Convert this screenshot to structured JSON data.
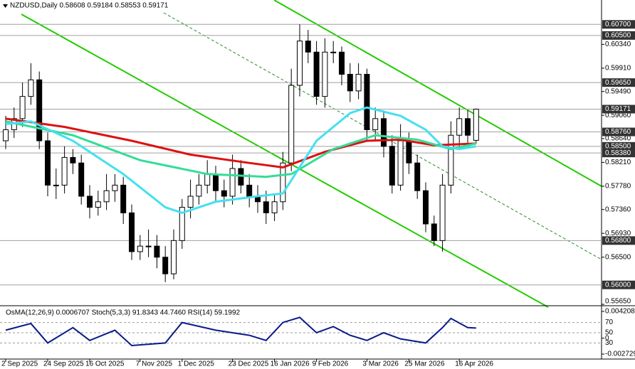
{
  "chart_data": {
    "type": "candlestick",
    "title": "NZDUSD,Daily  0.58608 0.59184 0.58553 0.59171",
    "categories": [
      "2 Sep 2025",
      null,
      null,
      null,
      null,
      "24 Sep 2025",
      null,
      null,
      null,
      null,
      "16 Oct 2025",
      null,
      null,
      null,
      null,
      null,
      "7 Nov 2025",
      null,
      null,
      null,
      null,
      "1 Dec 2025",
      null,
      null,
      null,
      null,
      null,
      "23 Dec 2025",
      null,
      null,
      null,
      null,
      "16 Jan 2026",
      null,
      null,
      null,
      null,
      "9 Feb 2026",
      null,
      null,
      null,
      null,
      null,
      "3 Mar 2026",
      null,
      null,
      null,
      null,
      "25 Mar 2026",
      null,
      null,
      null,
      null,
      null,
      "16 Apr 2026",
      null,
      null
    ],
    "open": [
      0.586,
      0.588,
      0.59,
      0.594,
      0.597,
      0.586,
      0.578,
      0.578,
      0.583,
      0.582,
      0.576,
      0.574,
      0.575,
      0.577,
      0.578,
      0.573,
      0.566,
      0.567,
      0.567,
      0.565,
      0.562,
      0.568,
      0.574,
      0.576,
      0.578,
      0.58,
      0.577,
      0.576,
      0.581,
      0.578,
      0.576,
      0.575,
      0.573,
      0.575,
      0.582,
      0.596,
      0.604,
      0.602,
      0.594,
      0.602,
      0.602,
      0.598,
      0.595,
      0.598,
      0.588,
      0.59,
      0.585,
      0.578,
      0.586,
      0.582,
      0.577,
      0.571,
      0.568,
      0.578,
      0.587,
      0.59,
      0.58608
    ],
    "high": [
      0.5905,
      0.592,
      0.5965,
      0.6,
      0.5985,
      0.5875,
      0.581,
      0.585,
      0.5845,
      0.5835,
      0.578,
      0.577,
      0.58,
      0.58,
      0.5795,
      0.5745,
      0.569,
      0.57,
      0.569,
      0.567,
      0.57,
      0.5755,
      0.579,
      0.58,
      0.5825,
      0.5815,
      0.579,
      0.5835,
      0.5825,
      0.58,
      0.578,
      0.577,
      0.5765,
      0.584,
      0.599,
      0.607,
      0.606,
      0.604,
      0.6045,
      0.604,
      0.603,
      0.6,
      0.6,
      0.599,
      0.592,
      0.5915,
      0.587,
      0.589,
      0.5875,
      0.5835,
      0.5785,
      0.5725,
      0.58,
      0.5895,
      0.592,
      0.5915,
      0.59184
    ],
    "low": [
      0.5845,
      0.5865,
      0.5885,
      0.5925,
      0.5845,
      0.576,
      0.5755,
      0.5765,
      0.58,
      0.5745,
      0.572,
      0.5725,
      0.5735,
      0.575,
      0.571,
      0.5645,
      0.5645,
      0.565,
      0.563,
      0.5605,
      0.561,
      0.5665,
      0.572,
      0.5745,
      0.5765,
      0.575,
      0.574,
      0.5745,
      0.5765,
      0.574,
      0.573,
      0.571,
      0.5715,
      0.5735,
      0.5805,
      0.594,
      0.6,
      0.5925,
      0.592,
      0.6,
      0.596,
      0.593,
      0.5935,
      0.586,
      0.586,
      0.583,
      0.5765,
      0.577,
      0.58,
      0.5755,
      0.5695,
      0.567,
      0.566,
      0.5765,
      0.585,
      0.585,
      0.58553
    ],
    "close": [
      0.588,
      0.59,
      0.594,
      0.597,
      0.586,
      0.578,
      0.578,
      0.583,
      0.582,
      0.576,
      0.574,
      0.575,
      0.577,
      0.578,
      0.573,
      0.566,
      0.567,
      0.567,
      0.565,
      0.562,
      0.568,
      0.574,
      0.576,
      0.578,
      0.58,
      0.577,
      0.576,
      0.581,
      0.578,
      0.576,
      0.575,
      0.573,
      0.575,
      0.582,
      0.596,
      0.604,
      0.602,
      0.594,
      0.602,
      0.602,
      0.598,
      0.595,
      0.598,
      0.588,
      0.59,
      0.585,
      0.578,
      0.586,
      0.582,
      0.577,
      0.571,
      0.568,
      0.578,
      0.587,
      0.59,
      0.587,
      0.59171
    ],
    "series": [
      {
        "color": "#dd1111",
        "x": [
          0,
          7,
          15,
          22,
          29,
          33,
          38,
          43,
          47,
          51,
          56
        ],
        "values": [
          0.59,
          0.5885,
          0.586,
          0.5835,
          0.582,
          0.5812,
          0.584,
          0.586,
          0.5862,
          0.5852,
          0.5855
        ]
      },
      {
        "color": "#33dd99",
        "x": [
          0,
          8,
          16,
          24,
          31,
          34,
          39,
          44,
          49,
          53,
          56
        ],
        "values": [
          0.5895,
          0.587,
          0.5825,
          0.58,
          0.5795,
          0.58,
          0.5845,
          0.587,
          0.5862,
          0.5845,
          0.5855
        ]
      },
      {
        "color": "#44e0f0",
        "x": [
          0,
          3,
          8,
          14,
          19,
          21,
          25,
          30,
          33,
          37,
          41,
          43,
          47,
          50,
          52,
          54,
          56
        ],
        "values": [
          0.589,
          0.5895,
          0.586,
          0.58,
          0.574,
          0.573,
          0.575,
          0.576,
          0.5765,
          0.586,
          0.591,
          0.592,
          0.5905,
          0.588,
          0.585,
          0.5845,
          0.585
        ]
      }
    ],
    "ylim": [
      0.5565,
      0.6114
    ],
    "yticks": [
      {
        "value": 0.6034,
        "label": "0.60340"
      },
      {
        "value": 0.5991,
        "label": "0.59910"
      },
      {
        "value": 0.5949,
        "label": "0.59490"
      },
      {
        "value": 0.5906,
        "label": "0.59060"
      },
      {
        "value": 0.5864,
        "label": "0.58640"
      },
      {
        "value": 0.5821,
        "label": "0.58210"
      },
      {
        "value": 0.5778,
        "label": "0.57780"
      },
      {
        "value": 0.5736,
        "label": "0.57360"
      },
      {
        "value": 0.5693,
        "label": "0.56930"
      },
      {
        "value": 0.565,
        "label": "0.56500"
      },
      {
        "value": 0.5565,
        "label": "0.55650"
      }
    ],
    "levels": [
      {
        "value": 0.607,
        "label": "0.60700"
      },
      {
        "value": 0.605,
        "label": "0.60500"
      },
      {
        "value": 0.5965,
        "label": "0.59650"
      },
      {
        "value": 0.59171,
        "label": "0.59171"
      },
      {
        "value": 0.5876,
        "label": "0.58760"
      },
      {
        "value": 0.585,
        "label": "0.58500"
      },
      {
        "value": 0.5838,
        "label": "0.58380"
      },
      {
        "value": 0.568,
        "label": "0.56800"
      },
      {
        "value": 0.56,
        "label": "0.56000"
      }
    ],
    "oscillator": {
      "title": "OsMA(12,26,9) 0.0006707  Stoch(5,3,3) 91.8343 44.7460  RSI(14) 59.1992",
      "ylim": [
        0,
        100
      ],
      "yticks": [
        70,
        50,
        30
      ],
      "osma_ylim": [
        -0.002729,
        0.004208
      ],
      "osma_ticks": [
        {
          "value": 0.004208,
          "label": "0.004208"
        },
        0,
        {
          "value": -0.002729,
          "label": "-0.002729"
        }
      ],
      "color": "#0a1a8a",
      "x": [
        0,
        3,
        5,
        8,
        10,
        13,
        15,
        19,
        21,
        25,
        29,
        31,
        33,
        35,
        37,
        39,
        41,
        43,
        45,
        47,
        50,
        52,
        53,
        55,
        56
      ],
      "values": [
        55,
        68,
        30,
        60,
        35,
        55,
        25,
        30,
        70,
        55,
        45,
        35,
        70,
        80,
        50,
        62,
        45,
        35,
        50,
        38,
        30,
        60,
        78,
        60,
        59.1992
      ]
    }
  }
}
